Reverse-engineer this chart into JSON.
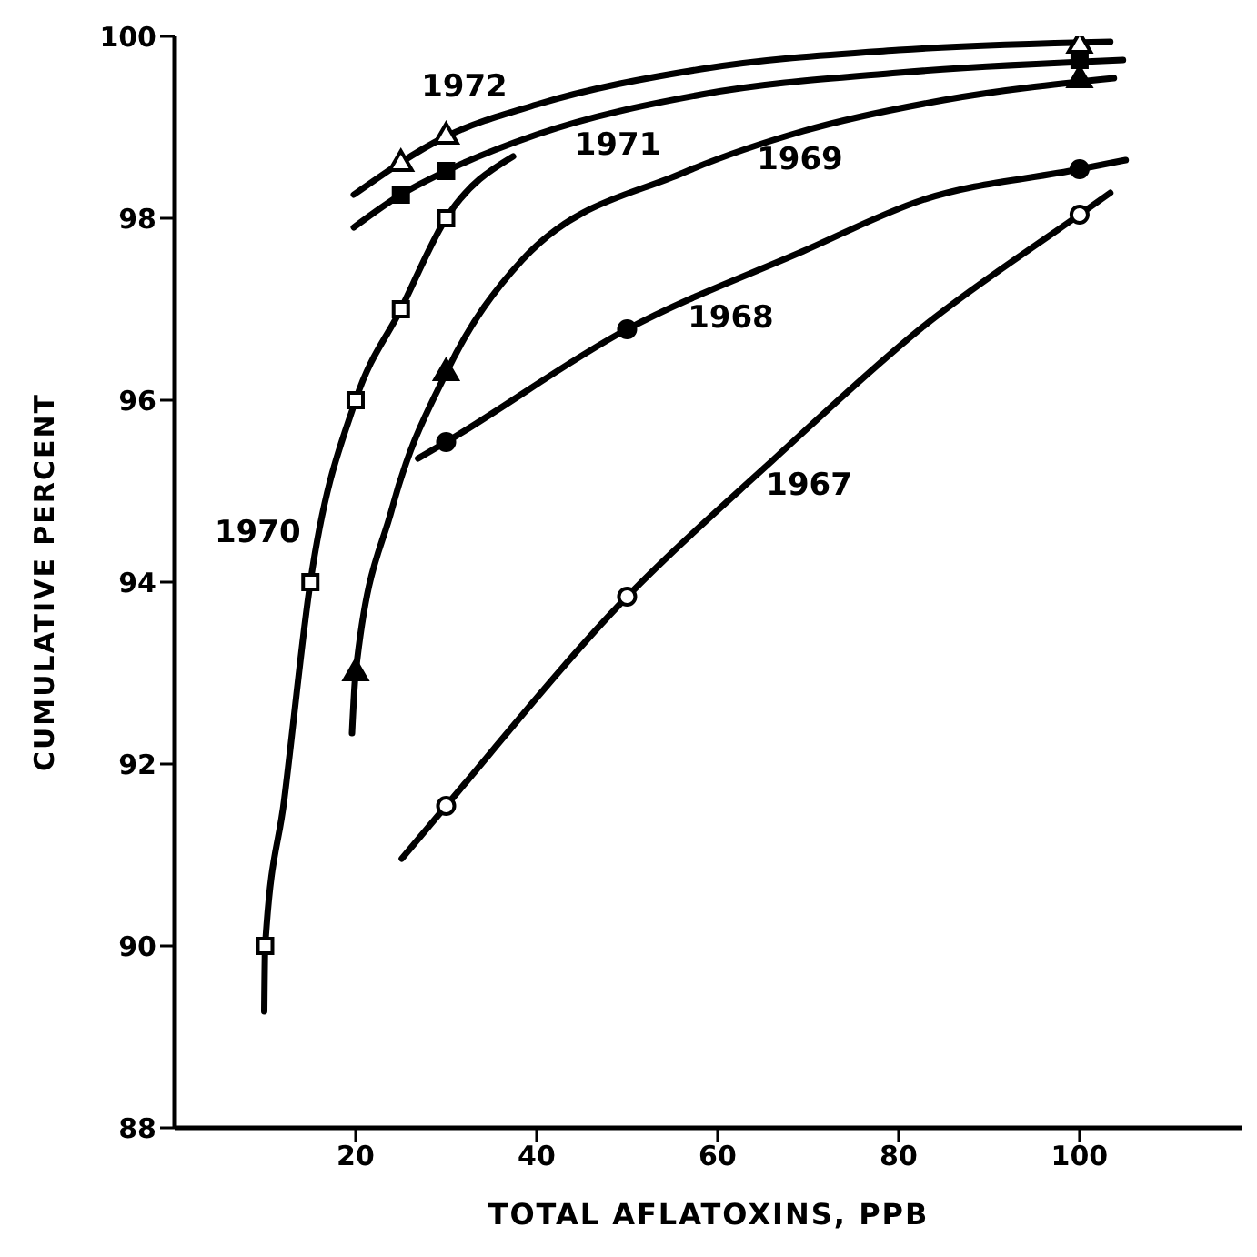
{
  "chart_data": {
    "type": "line",
    "xlabel": "TOTAL AFLATOXINS, PPB",
    "ylabel": "CUMULATIVE PERCENT",
    "xlim": [
      0,
      118
    ],
    "xticks": [
      20,
      40,
      60,
      80,
      100
    ],
    "ylim": [
      88,
      100
    ],
    "yticks": [
      88,
      90,
      92,
      94,
      96,
      98,
      100
    ],
    "grid": false,
    "series": [
      {
        "name": "1972",
        "color": "#000000",
        "marker": "none",
        "line_style": "solid",
        "x": [
          19.8,
          30,
          40,
          58.2,
          80,
          103.4
        ],
        "values": [
          98.26,
          98.9,
          99.25,
          99.64,
          99.85,
          99.94
        ]
      },
      {
        "name": "1971",
        "color": "#000000",
        "marker": "none",
        "line_style": "solid",
        "x": [
          19.8,
          25,
          30,
          40,
          58.2,
          80,
          104.8
        ],
        "values": [
          97.9,
          98.26,
          98.52,
          98.92,
          99.36,
          99.6,
          99.74
        ]
      },
      {
        "name": "1970",
        "color": "#000000",
        "marker": "none",
        "line_style": "solid",
        "x": [
          9.9,
          10,
          12.1,
          15,
          20,
          25,
          30,
          37.4
        ],
        "values": [
          89.28,
          90,
          91.6,
          94,
          96,
          97,
          98,
          98.68
        ]
      },
      {
        "name": "1969",
        "color": "#000000",
        "marker": "none",
        "line_style": "solid",
        "x": [
          19.6,
          20,
          24,
          30,
          38.4,
          56.2,
          69.5,
          85,
          103.8
        ],
        "values": [
          92.34,
          93,
          94.8,
          96.3,
          97.54,
          98.5,
          98.96,
          99.3,
          99.54
        ]
      },
      {
        "name": "1968",
        "color": "#000000",
        "marker": "none",
        "line_style": "solid",
        "x": [
          26.9,
          30,
          50,
          69.5,
          82.6,
          100,
          105.1
        ],
        "values": [
          95.36,
          95.54,
          96.78,
          97.64,
          98.2,
          98.54,
          98.64
        ]
      },
      {
        "name": "1967",
        "color": "#000000",
        "marker": "none",
        "line_style": "solid",
        "x": [
          25.1,
          30,
          50,
          66.1,
          82.6,
          100,
          103.4
        ],
        "values": [
          90.96,
          91.54,
          93.84,
          95.34,
          96.8,
          98.04,
          98.28
        ]
      },
      {
        "type": "scatter",
        "color": "#ffffff",
        "marker": "triangle",
        "x": [
          25,
          30,
          100
        ],
        "values": [
          98.6,
          98.9,
          99.9
        ]
      },
      {
        "type": "scatter",
        "color": "#000000",
        "marker": "square",
        "x": [
          25,
          30,
          100
        ],
        "values": [
          98.26,
          98.52,
          99.74
        ]
      },
      {
        "type": "scatter",
        "color": "#ffffff",
        "marker": "square",
        "x": [
          10,
          15,
          20,
          25,
          30
        ],
        "values": [
          90,
          94,
          96,
          97,
          98
        ]
      },
      {
        "type": "scatter",
        "color": "#000000",
        "marker": "triangle",
        "x": [
          20,
          30,
          100
        ],
        "values": [
          93,
          96.3,
          99.52
        ]
      },
      {
        "type": "scatter",
        "color": "#000000",
        "marker": "circle",
        "x": [
          30,
          50,
          100
        ],
        "values": [
          95.54,
          96.78,
          98.54
        ]
      },
      {
        "type": "scatter",
        "color": "#ffffff",
        "marker": "circle",
        "x": [
          30,
          50,
          100
        ],
        "values": [
          91.54,
          93.84,
          98.04
        ]
      }
    ]
  }
}
